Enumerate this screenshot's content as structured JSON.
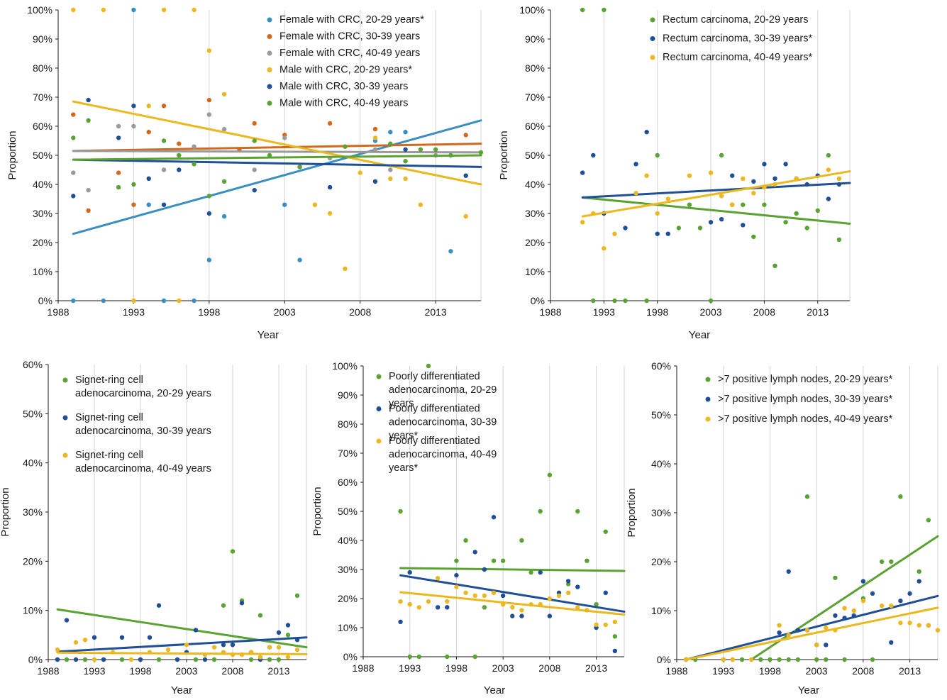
{
  "colors": {
    "f2029": "#3a8fc2",
    "f3039": "#d2691e",
    "f4049": "#9a9a9a",
    "m2029": "#ecb820",
    "m3039": "#1f4f96",
    "m4049": "#5aa332",
    "grid": "#d3d3d3",
    "axis": "#1a1a1a"
  },
  "chart_data": [
    {
      "type": "scatter",
      "xlabel": "Year",
      "ylabel": "Proportion",
      "xlim": [
        1988,
        2016
      ],
      "ylim": [
        0,
        1
      ],
      "xticks": [
        1988,
        1993,
        1998,
        2003,
        2008,
        2013
      ],
      "ytick_labels": [
        "0%",
        "10%",
        "20%",
        "30%",
        "40%",
        "50%",
        "60%",
        "70%",
        "80%",
        "90%",
        "100%"
      ],
      "legend_position": "top-right",
      "series": [
        {
          "name": "Female with CRC, 20-29 years*",
          "color_key": "f2029",
          "x": [
            1989,
            1991,
            1993,
            1994,
            1995,
            1997,
            1998,
            1999,
            2003,
            2004,
            2009,
            2010,
            2011,
            2014
          ],
          "y": [
            0.0,
            0.0,
            1.0,
            0.33,
            0.0,
            0.0,
            0.14,
            0.29,
            0.33,
            0.14,
            0.55,
            0.58,
            0.58,
            0.17
          ],
          "trend": [
            0.23,
            0.62
          ]
        },
        {
          "name": "Female with CRC, 30-39 years",
          "color_key": "f3039",
          "x": [
            1989,
            1990,
            1992,
            1993,
            1994,
            1995,
            1996,
            1998,
            2000,
            2001,
            2003,
            2006,
            2009,
            2015
          ],
          "y": [
            0.64,
            0.31,
            0.44,
            0.33,
            0.58,
            0.67,
            0.54,
            0.69,
            0.52,
            0.61,
            0.57,
            0.61,
            0.59,
            0.57
          ],
          "trend": [
            0.515,
            0.54
          ]
        },
        {
          "name": "Female with CRC, 40-49 years",
          "color_key": "f4049",
          "x": [
            1989,
            1990,
            1992,
            1993,
            1995,
            1997,
            1998,
            1999,
            2001,
            2003,
            2006,
            2009,
            2010,
            2013
          ],
          "y": [
            0.44,
            0.38,
            0.6,
            0.6,
            0.45,
            0.53,
            0.64,
            0.59,
            0.45,
            0.56,
            0.49,
            0.52,
            0.45,
            0.5
          ],
          "trend": [
            0.515,
            0.51
          ]
        },
        {
          "name": "Male with CRC, 20-29 years*",
          "color_key": "m2029",
          "x": [
            1989,
            1991,
            1993,
            1994,
            1995,
            1996,
            1997,
            1998,
            1999,
            2005,
            2006,
            2007,
            2008,
            2009,
            2010,
            2011,
            2012,
            2015
          ],
          "y": [
            1.0,
            1.0,
            0.0,
            0.67,
            1.0,
            0.0,
            1.0,
            0.86,
            0.71,
            0.33,
            0.3,
            0.11,
            0.44,
            0.56,
            0.42,
            0.42,
            0.33,
            0.29
          ],
          "trend": [
            0.685,
            0.4
          ]
        },
        {
          "name": "Male with CRC, 30-39 years",
          "color_key": "m3039",
          "x": [
            1989,
            1990,
            1992,
            1993,
            1994,
            1995,
            1996,
            1998,
            2001,
            2004,
            2006,
            2009,
            2011,
            2015
          ],
          "y": [
            0.36,
            0.69,
            0.56,
            0.67,
            0.42,
            0.33,
            0.45,
            0.3,
            0.38,
            0.46,
            0.39,
            0.41,
            0.52,
            0.43
          ],
          "trend": [
            0.485,
            0.46
          ]
        },
        {
          "name": "Male with CRC, 40-49 years",
          "color_key": "m4049",
          "x": [
            1989,
            1990,
            1992,
            1993,
            1995,
            1996,
            1997,
            1998,
            1999,
            2001,
            2002,
            2004,
            2007,
            2010,
            2011,
            2012,
            2013,
            2014,
            2016
          ],
          "y": [
            0.56,
            0.62,
            0.39,
            0.4,
            0.55,
            0.5,
            0.47,
            0.36,
            0.41,
            0.55,
            0.5,
            0.46,
            0.53,
            0.54,
            0.48,
            0.52,
            0.52,
            0.5,
            0.51
          ],
          "trend": [
            0.485,
            0.5
          ]
        }
      ]
    },
    {
      "type": "scatter",
      "xlabel": "Year",
      "ylabel": "Proportion",
      "xlim": [
        1988,
        2016
      ],
      "ylim": [
        0,
        1
      ],
      "xticks": [
        1988,
        1993,
        1998,
        2003,
        2008,
        2013
      ],
      "ytick_labels": [
        "0%",
        "10%",
        "20%",
        "30%",
        "40%",
        "50%",
        "60%",
        "70%",
        "80%",
        "90%",
        "100%"
      ],
      "legend_position": "top-right",
      "series": [
        {
          "name": "Rectum carcinoma, 20-29 years",
          "color_key": "m4049",
          "x": [
            1991,
            1992,
            1993,
            1994,
            1995,
            1997,
            1998,
            2000,
            2001,
            2002,
            2003,
            2004,
            2005,
            2006,
            2007,
            2008,
            2009,
            2010,
            2011,
            2012,
            2013,
            2014,
            2015
          ],
          "y": [
            1.0,
            0.0,
            1.0,
            0.0,
            0.0,
            0.0,
            0.5,
            0.25,
            0.33,
            0.25,
            0.0,
            0.5,
            0.33,
            0.33,
            0.22,
            0.33,
            0.12,
            0.27,
            0.3,
            0.25,
            0.31,
            0.5,
            0.21
          ],
          "trend": [
            0.355,
            0.265
          ]
        },
        {
          "name": "Rectum carcinoma, 30-39 years*",
          "color_key": "m3039",
          "x": [
            1991,
            1992,
            1993,
            1995,
            1996,
            1997,
            1998,
            1999,
            2003,
            2004,
            2005,
            2006,
            2007,
            2008,
            2009,
            2010,
            2011,
            2012,
            2013,
            2014,
            2015
          ],
          "y": [
            0.44,
            0.5,
            0.3,
            0.25,
            0.47,
            0.58,
            0.23,
            0.23,
            0.27,
            0.28,
            0.43,
            0.26,
            0.41,
            0.47,
            0.42,
            0.47,
            0.42,
            0.4,
            0.43,
            0.35,
            0.4
          ],
          "trend": [
            0.355,
            0.405
          ]
        },
        {
          "name": "Rectum carcinoma, 40-49 years*",
          "color_key": "m2029",
          "x": [
            1991,
            1992,
            1993,
            1994,
            1996,
            1997,
            1998,
            1999,
            2001,
            2003,
            2004,
            2005,
            2006,
            2007,
            2008,
            2009,
            2011,
            2014,
            2015
          ],
          "y": [
            0.27,
            0.3,
            0.18,
            0.23,
            0.37,
            0.43,
            0.3,
            0.35,
            0.43,
            0.44,
            0.36,
            0.33,
            0.42,
            0.37,
            0.39,
            0.4,
            0.42,
            0.45,
            0.42
          ],
          "trend": [
            0.29,
            0.445
          ]
        }
      ]
    },
    {
      "type": "scatter",
      "xlabel": "Year",
      "ylabel": "Proportion",
      "xlim": [
        1988,
        2016
      ],
      "ylim": [
        0,
        0.6
      ],
      "xticks": [
        1988,
        1993,
        1998,
        2003,
        2008,
        2013
      ],
      "ytick_labels": [
        "0%",
        "10%",
        "20%",
        "30%",
        "40%",
        "50%",
        "60%"
      ],
      "legend_position": "top-left",
      "series": [
        {
          "name": "Signet-ring cell adenocarcinoma, 20-29 years",
          "color_key": "m4049",
          "x": [
            1989,
            1990,
            1992,
            1994,
            1996,
            1998,
            2000,
            2002,
            2004,
            2006,
            2007,
            2008,
            2009,
            2010,
            2011,
            2012,
            2013,
            2014,
            2015
          ],
          "y": [
            0.0,
            0.0,
            0.0,
            0.0,
            0.0,
            0.0,
            0.0,
            0.0,
            0.0,
            0.0,
            0.11,
            0.22,
            0.12,
            0.0,
            0.09,
            0.0,
            0.0,
            0.05,
            0.13
          ],
          "trend": [
            0.102,
            0.025
          ]
        },
        {
          "name": "Signet-ring cell adenocarcinoma, 30-39 years",
          "color_key": "m3039",
          "x": [
            1989,
            1990,
            1991,
            1993,
            1994,
            1996,
            1998,
            1999,
            2000,
            2002,
            2003,
            2004,
            2005,
            2007,
            2008,
            2009,
            2010,
            2011,
            2012,
            2013,
            2014,
            2015
          ],
          "y": [
            0.0,
            0.08,
            0.0,
            0.045,
            0.0,
            0.045,
            0.0,
            0.045,
            0.11,
            0.0,
            0.015,
            0.06,
            0.0,
            0.03,
            0.03,
            0.115,
            0.015,
            0.0,
            0.025,
            0.055,
            0.07,
            0.04
          ],
          "trend": [
            0.016,
            0.045
          ]
        },
        {
          "name": "Signet-ring cell adenocarcinoma, 40-49 years",
          "color_key": "m2029",
          "x": [
            1989,
            1991,
            1992,
            1993,
            1995,
            1997,
            1999,
            2001,
            2003,
            2005,
            2006,
            2007,
            2008,
            2009,
            2010,
            2011,
            2012,
            2013,
            2014,
            2015
          ],
          "y": [
            0.02,
            0.035,
            0.04,
            0.0,
            0.015,
            0.0,
            0.015,
            0.02,
            0.03,
            0.01,
            0.025,
            0.015,
            0.01,
            0.01,
            0.015,
            0.005,
            0.025,
            0.025,
            0.005,
            0.02
          ],
          "trend": [
            0.014,
            0.011
          ]
        }
      ]
    },
    {
      "type": "scatter",
      "xlabel": "Year",
      "ylabel": "Proportion",
      "xlim": [
        1988,
        2016
      ],
      "ylim": [
        0,
        1
      ],
      "xticks": [
        1988,
        1993,
        1998,
        2003,
        2008,
        2013
      ],
      "ytick_labels": [
        "0%",
        "10%",
        "20%",
        "30%",
        "40%",
        "50%",
        "60%",
        "70%",
        "80%",
        "90%",
        "100%"
      ],
      "legend_position": "top-left",
      "series": [
        {
          "name": "Poorly differentiated adenocarcinoma, 20-29 years",
          "color_key": "m4049",
          "x": [
            1992,
            1993,
            1994,
            1995,
            1997,
            1998,
            1999,
            2000,
            2001,
            2002,
            2003,
            2005,
            2006,
            2007,
            2008,
            2010,
            2011,
            2012,
            2013,
            2014,
            2015
          ],
          "y": [
            0.5,
            0.0,
            0.0,
            1.0,
            0.0,
            0.33,
            0.4,
            0.0,
            0.17,
            0.33,
            0.33,
            0.4,
            0.29,
            0.5,
            0.625,
            0.25,
            0.5,
            0.33,
            0.18,
            0.43,
            0.07
          ],
          "trend": [
            0.305,
            0.295
          ]
        },
        {
          "name": "Poorly differentiated adenocarcinoma, 30-39 years*",
          "color_key": "m3039",
          "x": [
            1992,
            1993,
            1996,
            1997,
            1998,
            2000,
            2001,
            2002,
            2003,
            2004,
            2005,
            2007,
            2008,
            2009,
            2010,
            2011,
            2013,
            2014,
            2015
          ],
          "y": [
            0.12,
            0.29,
            0.17,
            0.17,
            0.28,
            0.36,
            0.3,
            0.48,
            0.21,
            0.14,
            0.14,
            0.29,
            0.14,
            0.22,
            0.26,
            0.24,
            0.1,
            0.22,
            0.02
          ],
          "trend": [
            0.28,
            0.155
          ]
        },
        {
          "name": "Poorly differentiated adenocarcinoma, 40-49 years*",
          "color_key": "m2029",
          "x": [
            1992,
            1993,
            1994,
            1995,
            1996,
            1997,
            1998,
            1999,
            2000,
            2001,
            2002,
            2003,
            2004,
            2005,
            2006,
            2007,
            2008,
            2009,
            2010,
            2011,
            2012,
            2013,
            2014,
            2015
          ],
          "y": [
            0.19,
            0.18,
            0.17,
            0.19,
            0.27,
            0.19,
            0.24,
            0.22,
            0.21,
            0.21,
            0.22,
            0.18,
            0.17,
            0.16,
            0.18,
            0.18,
            0.2,
            0.21,
            0.22,
            0.17,
            0.16,
            0.11,
            0.11,
            0.12
          ],
          "trend": [
            0.222,
            0.145
          ]
        }
      ]
    },
    {
      "type": "scatter",
      "xlabel": "Year",
      "ylabel": "Proportion",
      "xlim": [
        1988,
        2016
      ],
      "ylim": [
        0,
        0.6
      ],
      "xticks": [
        1988,
        1993,
        1998,
        2003,
        2008,
        2013
      ],
      "ytick_labels": [
        "0%",
        "10%",
        "20%",
        "30%",
        "40%",
        "50%",
        "60%"
      ],
      "legend_position": "top-right",
      "series": [
        {
          "name": ">7 positive lymph nodes, 20-29 years*",
          "color_key": "m4049",
          "x": [
            1989,
            1990,
            1993,
            1994,
            1995,
            1997,
            1998,
            1999,
            2000,
            2001,
            2002,
            2003,
            2004,
            2005,
            2006,
            2008,
            2009,
            2010,
            2011,
            2012,
            2014,
            2015
          ],
          "y": [
            0.0,
            0.0,
            0.0,
            0.0,
            0.0,
            0.0,
            0.0,
            0.0,
            0.0,
            0.0,
            0.333,
            0.0,
            0.0,
            0.167,
            0.0,
            0.125,
            0.0,
            0.2,
            0.2,
            0.333,
            0.18,
            0.285
          ],
          "trend_x": [
            1996,
            2016
          ],
          "trend": [
            0.0,
            0.252
          ]
        },
        {
          "name": ">7 positive lymph nodes, 30-39 years*",
          "color_key": "m3039",
          "x": [
            1989,
            1999,
            2000,
            2001,
            2002,
            2003,
            2004,
            2005,
            2006,
            2007,
            2008,
            2009,
            2011,
            2012,
            2013,
            2014,
            2015
          ],
          "y": [
            0.0,
            0.055,
            0.18,
            0.06,
            0.06,
            0.03,
            0.03,
            0.09,
            0.085,
            0.09,
            0.16,
            0.135,
            0.035,
            0.12,
            0.135,
            0.16,
            0.07
          ],
          "trend_x": [
            1989,
            2016
          ],
          "trend": [
            0.0,
            0.13
          ]
        },
        {
          "name": ">7 positive lymph nodes, 40-49 years*",
          "color_key": "m2029",
          "x": [
            1989,
            1993,
            1994,
            1996,
            1999,
            2000,
            2002,
            2003,
            2004,
            2005,
            2006,
            2007,
            2008,
            2010,
            2011,
            2012,
            2013,
            2014,
            2015,
            2016
          ],
          "y": [
            0.0,
            0.0,
            0.0,
            0.0,
            0.07,
            0.05,
            0.06,
            0.03,
            0.065,
            0.06,
            0.105,
            0.1,
            0.12,
            0.11,
            0.11,
            0.075,
            0.075,
            0.07,
            0.07,
            0.06
          ],
          "trend_x": [
            1989,
            2016
          ],
          "trend": [
            0.0,
            0.106
          ]
        }
      ]
    }
  ]
}
